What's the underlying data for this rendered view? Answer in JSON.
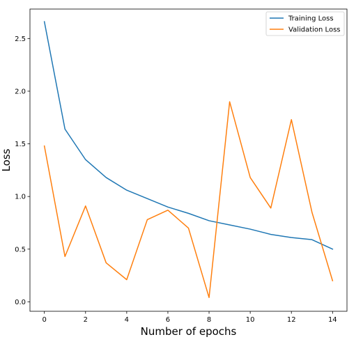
{
  "chart_data": {
    "type": "line",
    "title": "",
    "xlabel": "Number of epochs",
    "ylabel": "Loss",
    "x": [
      0,
      1,
      2,
      3,
      4,
      5,
      6,
      7,
      8,
      9,
      10,
      11,
      12,
      13,
      14
    ],
    "xlim": [
      -0.7,
      14.7
    ],
    "ylim": [
      -0.09,
      2.78
    ],
    "xticks": [
      0,
      2,
      4,
      6,
      8,
      10,
      12,
      14
    ],
    "xtick_labels": [
      "0",
      "2",
      "4",
      "6",
      "8",
      "10",
      "12",
      "14"
    ],
    "yticks": [
      0.0,
      0.5,
      1.0,
      1.5,
      2.0,
      2.5
    ],
    "ytick_labels": [
      "0.0",
      "0.5",
      "1.0",
      "1.5",
      "2.0",
      "2.5"
    ],
    "grid": false,
    "legend_position": "top-right",
    "series": [
      {
        "name": "Training Loss",
        "color": "#1f77b4",
        "values": [
          2.66,
          1.64,
          1.35,
          1.18,
          1.06,
          0.98,
          0.9,
          0.84,
          0.77,
          0.73,
          0.69,
          0.64,
          0.61,
          0.59,
          0.5
        ]
      },
      {
        "name": "Validation Loss",
        "color": "#ff7f0e",
        "values": [
          1.48,
          0.43,
          0.91,
          0.37,
          0.21,
          0.78,
          0.87,
          0.7,
          0.04,
          1.9,
          1.18,
          0.89,
          1.73,
          0.85,
          0.2
        ]
      }
    ]
  }
}
